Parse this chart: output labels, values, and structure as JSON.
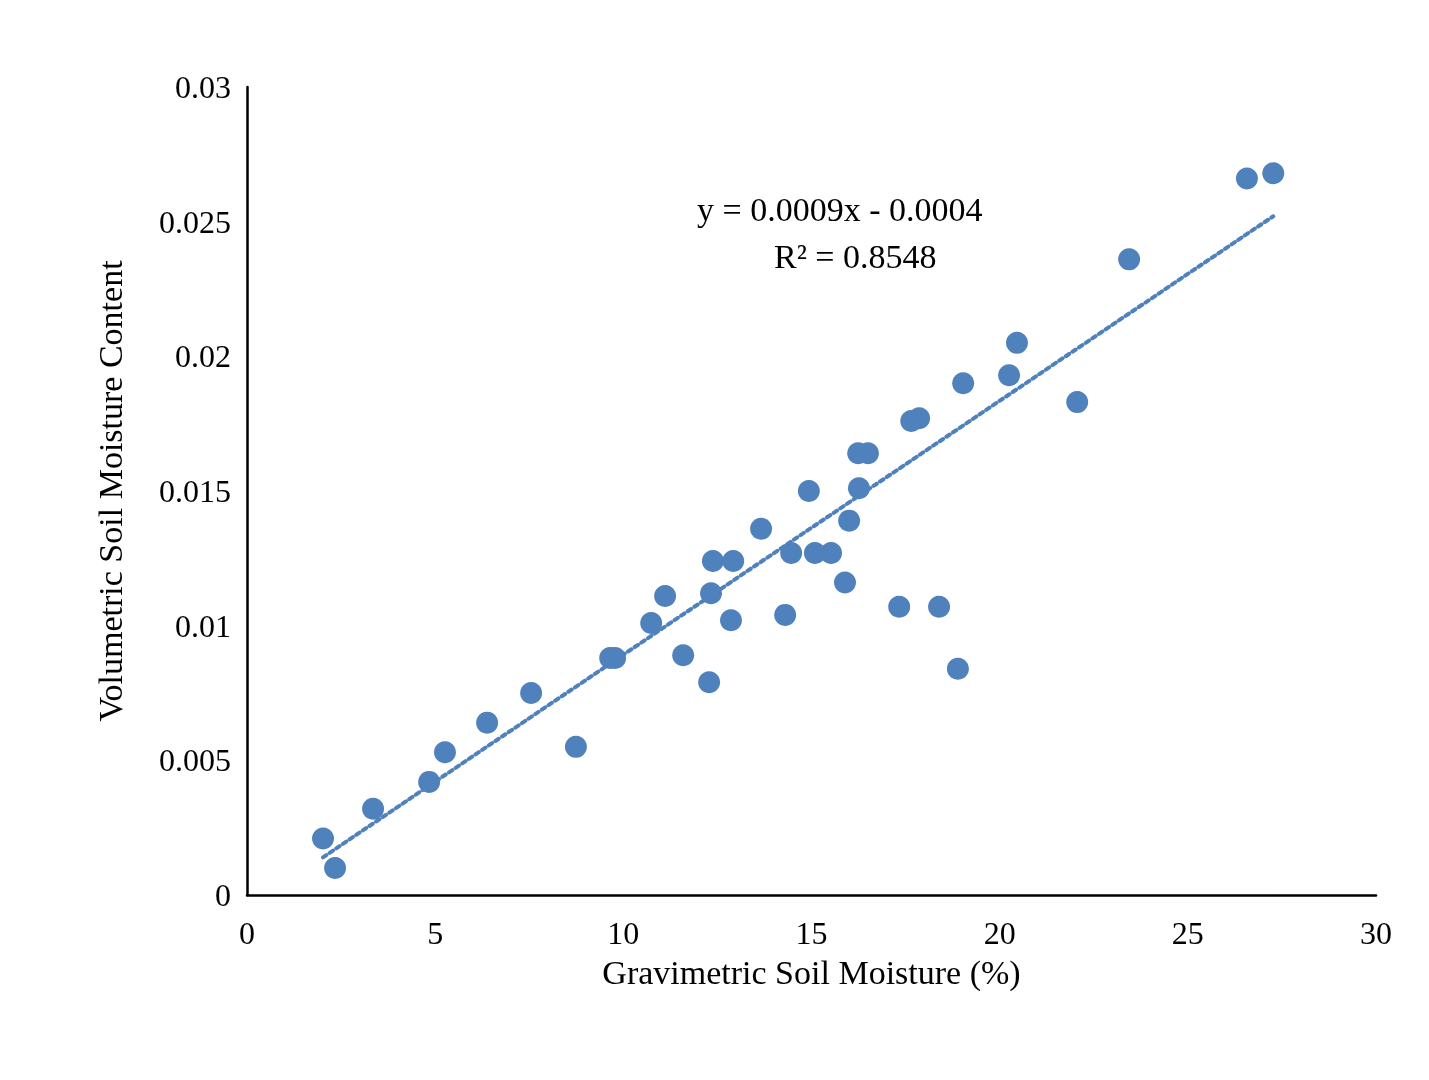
{
  "chart_data": {
    "type": "scatter",
    "xlabel": "Gravimetric Soil Moisture (%)",
    "ylabel": "Volumetric Soil Moisture Content",
    "annotations": [
      "y = 0.0009x - 0.0004",
      "R² = 0.8548"
    ],
    "xlim": [
      0,
      30
    ],
    "xticks": [
      0,
      5,
      10,
      15,
      20,
      25,
      30
    ],
    "ylim": [
      0,
      0.03
    ],
    "yticks": [
      0,
      0.005,
      0.01,
      0.015,
      0.02,
      0.025,
      0.03
    ],
    "grid": false,
    "marker": "circle",
    "series": [
      {
        "color": "#4f81bd",
        "x": [
          2.02,
          2.34,
          3.35,
          4.84,
          5.26,
          6.38,
          7.55,
          8.74,
          9.65,
          9.78,
          10.74,
          11.11,
          11.59,
          12.28,
          12.33,
          12.38,
          12.86,
          12.92,
          13.66,
          14.3,
          14.46,
          14.93,
          15.09,
          15.52,
          15.89,
          16.0,
          16.26,
          16.24,
          16.5,
          17.33,
          17.65,
          17.86,
          18.39,
          18.89,
          19.03,
          20.25,
          20.46,
          22.06,
          23.44,
          26.57,
          27.27
        ],
        "values": [
          0.0021,
          0.001,
          0.0032,
          0.0042,
          0.0053,
          0.0064,
          0.0075,
          0.0055,
          0.0088,
          0.0088,
          0.0101,
          0.0111,
          0.0089,
          0.0079,
          0.0112,
          0.0124,
          0.0102,
          0.0124,
          0.0136,
          0.0104,
          0.0127,
          0.015,
          0.0127,
          0.0127,
          0.0116,
          0.0139,
          0.0151,
          0.0164,
          0.0164,
          0.0107,
          0.0176,
          0.0177,
          0.0107,
          0.0084,
          0.019,
          0.0193,
          0.0205,
          0.0183,
          0.0236,
          0.0266,
          0.0268
        ]
      },
      {
        "type": "line",
        "color": "#4f81bd",
        "line_style": "dotted",
        "marker": "none",
        "x": [
          2.02,
          27.27
        ],
        "values": [
          0.0014,
          0.0252
        ]
      }
    ]
  }
}
